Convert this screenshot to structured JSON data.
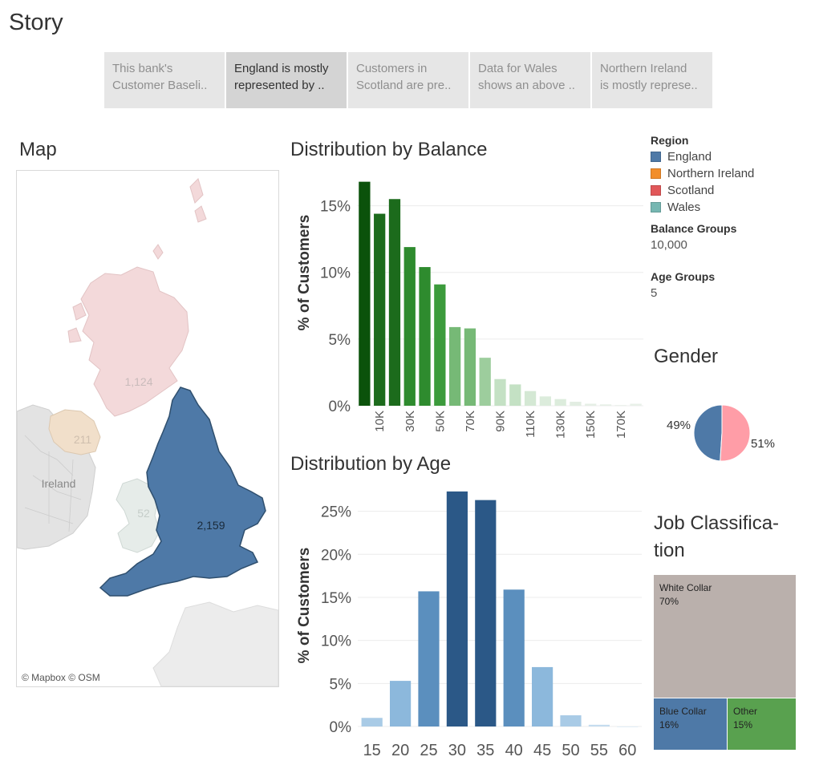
{
  "story": {
    "title": "Story",
    "points": [
      {
        "line1": "This bank's",
        "line2": "Customer Baseli..",
        "active": false
      },
      {
        "line1": "England is mostly",
        "line2": "represented by ..",
        "active": true
      },
      {
        "line1": "Customers in",
        "line2": "Scotland are pre..",
        "active": false
      },
      {
        "line1": "Data for Wales",
        "line2": "shows an above ..",
        "active": false
      },
      {
        "line1": "Northern Ireland",
        "line2": "is mostly represe..",
        "active": false
      }
    ]
  },
  "map": {
    "title": "Map",
    "labels": {
      "scotland": "1,124",
      "northern_ireland": "211",
      "wales": "52",
      "england": "2,159",
      "ireland": "Ireland"
    },
    "attribution": "© Mapbox © OSM"
  },
  "balance": {
    "title": "Distribution by Balance",
    "ylabel": "% of Customers"
  },
  "age": {
    "title": "Distribution by Age",
    "ylabel": "% of Customers"
  },
  "legend": {
    "region_heading": "Region",
    "regions": [
      {
        "name": "England",
        "color": "#4e79a7"
      },
      {
        "name": "Northern Ireland",
        "color": "#f28e2b"
      },
      {
        "name": "Scotland",
        "color": "#e15759"
      },
      {
        "name": "Wales",
        "color": "#76b7b2"
      }
    ],
    "balance_groups_heading": "Balance Groups",
    "balance_groups_value": "10,000",
    "age_groups_heading": "Age Groups",
    "age_groups_value": "5"
  },
  "gender": {
    "title": "Gender",
    "colors": [
      "#4e79a7",
      "#ff9da7"
    ]
  },
  "job": {
    "title_line1": "Job Classifica-",
    "title_line2": "tion"
  },
  "chart_data": [
    {
      "type": "bar",
      "title": "Distribution by Balance",
      "ylabel": "% of Customers",
      "xlabel": "",
      "categories": [
        "0",
        "10K",
        "20K",
        "30K",
        "40K",
        "50K",
        "60K",
        "70K",
        "80K",
        "90K",
        "100K",
        "110K",
        "120K",
        "130K",
        "140K",
        "150K",
        "160K",
        "170K",
        "180K"
      ],
      "tick_labels": [
        "10K",
        "30K",
        "50K",
        "70K",
        "90K",
        "110K",
        "130K",
        "150K",
        "170K"
      ],
      "values": [
        16.8,
        14.4,
        15.5,
        11.9,
        10.4,
        9.1,
        5.9,
        5.8,
        3.6,
        2.0,
        1.6,
        1.1,
        0.7,
        0.5,
        0.3,
        0.15,
        0.1,
        0.05,
        0.15
      ],
      "yticks": [
        "0%",
        "5%",
        "10%",
        "15%"
      ],
      "ylim": [
        0,
        17.5
      ],
      "colors": [
        "#0b520b",
        "#1c6b1c",
        "#1c6b1c",
        "#2e8b2e",
        "#2e8b2e",
        "#3c9b3c",
        "#76b976",
        "#76b976",
        "#9dcd9d",
        "#c4e1c4",
        "#c4e1c4",
        "#d4e8d4",
        "#dcecdc",
        "#dcecdc",
        "#e2ede2",
        "#e6efe6",
        "#e6efe6",
        "#e8f0e8",
        "#e8f0e8"
      ],
      "grid": true
    },
    {
      "type": "bar",
      "title": "Distribution by Age",
      "ylabel": "% of Customers",
      "xlabel": "",
      "categories": [
        "15",
        "20",
        "25",
        "30",
        "35",
        "40",
        "45",
        "50",
        "55",
        "60"
      ],
      "values": [
        1.0,
        5.3,
        15.7,
        27.3,
        26.3,
        15.9,
        6.9,
        1.3,
        0.2,
        0.0
      ],
      "yticks": [
        "0%",
        "5%",
        "10%",
        "15%",
        "20%",
        "25%"
      ],
      "ylim": [
        0,
        28.5
      ],
      "colors": [
        "#a9cbe6",
        "#8cb8dc",
        "#5b8fbe",
        "#2b5887",
        "#2b5887",
        "#5b8fbe",
        "#8cb8dc",
        "#a9cbe6",
        "#c5dcef",
        "#c5dcef"
      ],
      "grid": true
    },
    {
      "type": "pie",
      "title": "Gender",
      "labels": [
        "49%",
        "51%"
      ],
      "values": [
        49,
        51
      ]
    },
    {
      "type": "table",
      "title": "Job Classification",
      "items": [
        {
          "name": "White Collar",
          "pct": "70%",
          "value": 70,
          "color": "#bab0ac"
        },
        {
          "name": "Blue Collar",
          "pct": "16%",
          "value": 16,
          "color": "#4e79a7"
        },
        {
          "name": "Other",
          "pct": "15%",
          "value": 15,
          "color": "#59a14f"
        }
      ]
    }
  ]
}
